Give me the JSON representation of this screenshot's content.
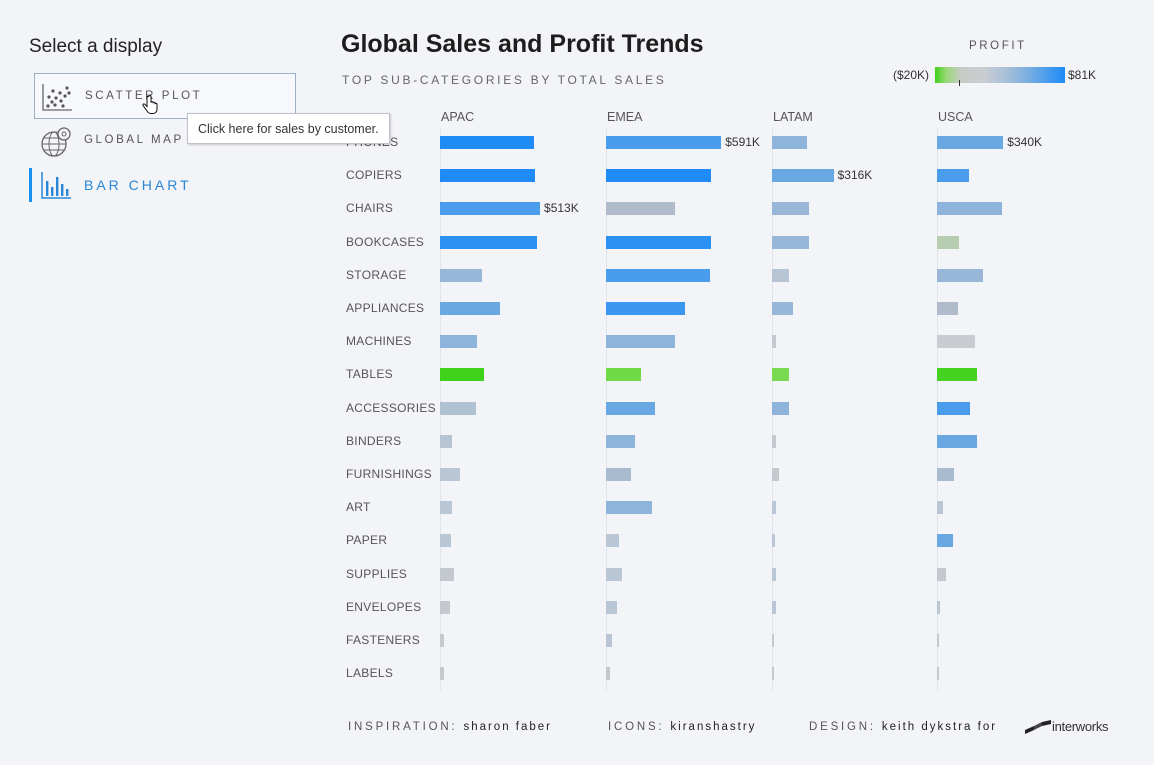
{
  "sidebar": {
    "title": "Select a display",
    "items": [
      {
        "label": "SCATTER PLOT",
        "icon": "scatter-plot-icon"
      },
      {
        "label": "GLOBAL MAP",
        "icon": "globe-icon"
      },
      {
        "label": "BAR CHART",
        "icon": "bar-chart-icon",
        "active": true
      }
    ],
    "tooltip": "Click here for sales by customer."
  },
  "header": {
    "title": "Global Sales and Profit Trends",
    "subtitle": "TOP SUB-CATEGORIES BY TOTAL SALES"
  },
  "legend": {
    "title": "PROFIT",
    "min_label": "($20K)",
    "max_label": "$81K"
  },
  "footer": {
    "inspiration_label": "INSPIRATION:",
    "inspiration_name": "sharon faber",
    "icons_label": "ICONS:",
    "icons_name": "kiranshastry",
    "design_label": "DESIGN:",
    "design_name": "keith dykstra for",
    "brand": "interworks"
  },
  "chart_data": {
    "type": "bar",
    "orientation": "horizontal",
    "categories": [
      "PHONES",
      "COPIERS",
      "CHAIRS",
      "BOOKCASES",
      "STORAGE",
      "APPLIANCES",
      "MACHINES",
      "TABLES",
      "ACCESSORIES",
      "BINDERS",
      "FURNISHINGS",
      "ART",
      "PAPER",
      "SUPPLIES",
      "ENVELOPES",
      "FASTENERS",
      "LABELS"
    ],
    "xlim": [
      0,
      600
    ],
    "series": [
      {
        "name": "APAC",
        "values": [
          482,
          487,
          513,
          497,
          215,
          306,
          188,
          224,
          186,
          63,
          102,
          60,
          58,
          70,
          50,
          20,
          18
        ],
        "colors": [
          "#1f8bf6",
          "#1f8bf6",
          "#4a9ded",
          "#2b92f3",
          "#98b7d8",
          "#6aa8e3",
          "#8fb4dc",
          "#40d11a",
          "#b0c1d2",
          "#b6c4d4",
          "#b8c6d5",
          "#b9c6d4",
          "#b9c6d4",
          "#c4c9cf",
          "#c4c9cf",
          "#c6cacf",
          "#c6cacf"
        ],
        "labels": [
          null,
          null,
          "$513K",
          null,
          null,
          null,
          null,
          null,
          null,
          null,
          null,
          null,
          null,
          null,
          null,
          null,
          null
        ]
      },
      {
        "name": "EMEA",
        "values": [
          591,
          538,
          355,
          538,
          535,
          406,
          355,
          180,
          250,
          150,
          128,
          238,
          65,
          80,
          58,
          30,
          22
        ],
        "colors": [
          "#4a9ded",
          "#1f8bf6",
          "#b0bccc",
          "#2b92f3",
          "#4a9ded",
          "#3b96ef",
          "#8fb4dc",
          "#6fd946",
          "#6aa8e3",
          "#8fb4dc",
          "#a9bbcf",
          "#8fb4dc",
          "#b8c6d5",
          "#b8c6d5",
          "#b8c6d5",
          "#b8c6d5",
          "#c4c9cf"
        ],
        "labels": [
          "$591K",
          null,
          null,
          null,
          null,
          null,
          null,
          null,
          null,
          null,
          null,
          null,
          null,
          null,
          null,
          null,
          null
        ]
      },
      {
        "name": "LATAM",
        "values": [
          177,
          316,
          188,
          190,
          88,
          110,
          21,
          88,
          88,
          20,
          36,
          21,
          17,
          21,
          21,
          10,
          8
        ],
        "colors": [
          "#8fb4dc",
          "#6aa8e3",
          "#98b7d8",
          "#98b7d8",
          "#b6c4d4",
          "#98b7d8",
          "#c4c9cf",
          "#79d94f",
          "#8fb4dc",
          "#c4c9cf",
          "#c4c9cf",
          "#b8c6d5",
          "#b8c6d5",
          "#b8c6d5",
          "#b8c6d5",
          "#c4c9cf",
          "#c4c9cf"
        ],
        "labels": [
          null,
          "$316K",
          null,
          null,
          null,
          null,
          null,
          null,
          null,
          null,
          null,
          null,
          null,
          null,
          null,
          null,
          null
        ]
      },
      {
        "name": "USCA",
        "values": [
          340,
          162,
          334,
          115,
          235,
          110,
          195,
          206,
          170,
          206,
          88,
          30,
          80,
          45,
          15,
          5,
          10
        ],
        "colors": [
          "#6aa8e3",
          "#4a9ded",
          "#8fb4dc",
          "#b7cdb1",
          "#98b7d8",
          "#b0bccc",
          "#c9cdd2",
          "#45d220",
          "#4a9ded",
          "#6aa8e3",
          "#a9bbcf",
          "#b8c6d5",
          "#6aa8e3",
          "#c4c9cf",
          "#b8c6d5",
          "#c4c9cf",
          "#c4c9cf"
        ],
        "labels": [
          "$340K",
          null,
          null,
          null,
          null,
          null,
          null,
          null,
          null,
          null,
          null,
          null,
          null,
          null,
          null,
          null,
          null
        ]
      }
    ]
  }
}
